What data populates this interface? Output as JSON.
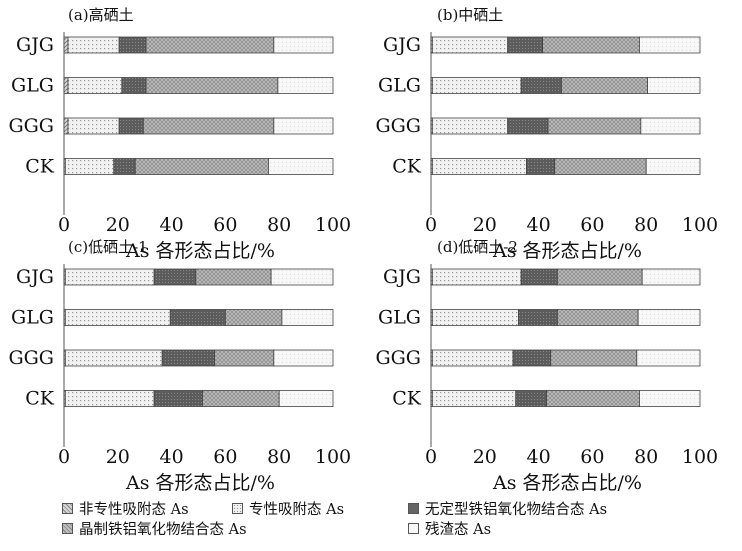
{
  "colors": {
    "non_specific": "#d0d0d0",
    "specific": "#ececec",
    "amorphous": "#6e6e6e",
    "crystalline": "#b4b4b4",
    "residual": "#f4f4f4"
  },
  "chart_data": [
    {
      "type": "bar",
      "orientation": "horizontal",
      "stacked": true,
      "title": "(a)高硒土",
      "xlabel": "As 各形态占比/%",
      "xlim": [
        0,
        100
      ],
      "xticks": [
        0,
        20,
        40,
        60,
        80,
        100
      ],
      "categories": [
        "GJG",
        "GLG",
        "GGG",
        "CK"
      ],
      "series": [
        {
          "name": "非专性吸附态 As",
          "values": [
            1.5,
            1.5,
            1.5,
            0.5
          ]
        },
        {
          "name": "专性吸附态 As",
          "values": [
            19,
            20,
            19,
            18
          ]
        },
        {
          "name": "无定型铁铝氧化物结合态 As",
          "values": [
            10,
            9,
            9,
            8
          ]
        },
        {
          "name": "晶制铁铝氧化物结合态 As",
          "values": [
            47.5,
            49,
            48.5,
            49.5
          ]
        },
        {
          "name": "残渣态 As",
          "values": [
            22,
            20.5,
            22,
            24
          ]
        }
      ]
    },
    {
      "type": "bar",
      "orientation": "horizontal",
      "stacked": true,
      "title": "(b)中硒土",
      "xlabel": "As 各形态占比/%",
      "xlim": [
        0,
        100
      ],
      "xticks": [
        0,
        20,
        40,
        60,
        80,
        100
      ],
      "categories": [
        "GJG",
        "GLG",
        "GGG",
        "CK"
      ],
      "series": [
        {
          "name": "非专性吸附态 As",
          "values": [
            0.5,
            0.5,
            0.5,
            0.5
          ]
        },
        {
          "name": "专性吸附态 As",
          "values": [
            28,
            33,
            28,
            35
          ]
        },
        {
          "name": "无定型铁铝氧化物结合态 As",
          "values": [
            13,
            15,
            15,
            10.5
          ]
        },
        {
          "name": "晶制铁铝氧化物结合态 As",
          "values": [
            36,
            32,
            34.5,
            34
          ]
        },
        {
          "name": "残渣态 As",
          "values": [
            22.5,
            19.5,
            22,
            20
          ]
        }
      ]
    },
    {
      "type": "bar",
      "orientation": "horizontal",
      "stacked": true,
      "title": "(c)低硒土-1",
      "xlabel": "As 各形态占比/%",
      "xlim": [
        0,
        100
      ],
      "xticks": [
        0,
        20,
        40,
        60,
        80,
        100
      ],
      "categories": [
        "GJG",
        "GLG",
        "GGG",
        "CK"
      ],
      "series": [
        {
          "name": "非专性吸附态 As",
          "values": [
            0.5,
            0.5,
            0.5,
            0.5
          ]
        },
        {
          "name": "专性吸附态 As",
          "values": [
            33,
            39,
            36,
            33
          ]
        },
        {
          "name": "无定型铁铝氧化物结合态 As",
          "values": [
            15.5,
            20.5,
            19.5,
            18
          ]
        },
        {
          "name": "晶制铁铝氧化物结合态 As",
          "values": [
            28,
            21,
            22,
            28.5
          ]
        },
        {
          "name": "残渣态 As",
          "values": [
            23,
            19,
            22,
            20
          ]
        }
      ]
    },
    {
      "type": "bar",
      "orientation": "horizontal",
      "stacked": true,
      "title": "(d)低硒土-2",
      "xlabel": "As 各形态占比/%",
      "xlim": [
        0,
        100
      ],
      "xticks": [
        0,
        20,
        40,
        60,
        80,
        100
      ],
      "categories": [
        "GJG",
        "GLG",
        "GGG",
        "CK"
      ],
      "series": [
        {
          "name": "非专性吸附态 As",
          "values": [
            0.5,
            0.5,
            0.5,
            0.5
          ]
        },
        {
          "name": "专性吸附态 As",
          "values": [
            33,
            32,
            30,
            31
          ]
        },
        {
          "name": "无定型铁铝氧化物结合态 As",
          "values": [
            13.5,
            14.5,
            14,
            11.5
          ]
        },
        {
          "name": "晶制铁铝氧化物结合态 As",
          "values": [
            31.5,
            30,
            32,
            34.5
          ]
        },
        {
          "name": "残渣态 As",
          "values": [
            21.5,
            23,
            23.5,
            22.5
          ]
        }
      ]
    }
  ],
  "legend": [
    {
      "label": "非专性吸附态 As",
      "series_index": 0
    },
    {
      "label": "专性吸附态 As",
      "series_index": 1
    },
    {
      "label": "无定型铁铝氧化物结合态 As",
      "series_index": 2
    },
    {
      "label": "晶制铁铝氧化物结合态 As",
      "series_index": 3
    },
    {
      "label": "残渣态 As",
      "series_index": 4
    }
  ]
}
